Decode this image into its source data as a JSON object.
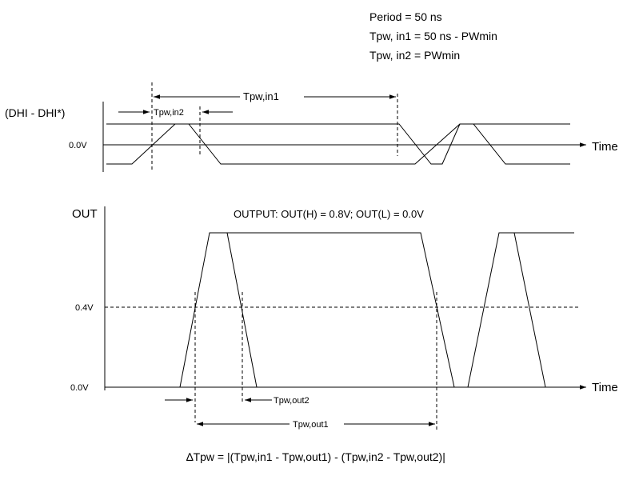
{
  "header": {
    "period": "Period = 50 ns",
    "tpw_in1_def": "Tpw, in1 = 50 ns - PWmin",
    "tpw_in2_def": "Tpw, in2 = PWmin"
  },
  "input_panel": {
    "signal_label": "(DHI - DHI*)",
    "level_zero": "0.0V",
    "time_label": "Time",
    "tpw_in1": "Tpw,in1",
    "tpw_in2": "Tpw,in2"
  },
  "output_panel": {
    "signal_label": "OUT",
    "output_levels": "OUTPUT:  OUT(H) = 0.8V; OUT(L) = 0.0V",
    "level_mid": "0.4V",
    "level_zero": "0.0V",
    "time_label": "Time",
    "tpw_out1": "Tpw,out1",
    "tpw_out2": "Tpw,out2"
  },
  "formula": "∆Tpw = |(Tpw,in1 - Tpw,out1) - (Tpw,in2 - Tpw,out2)|"
}
